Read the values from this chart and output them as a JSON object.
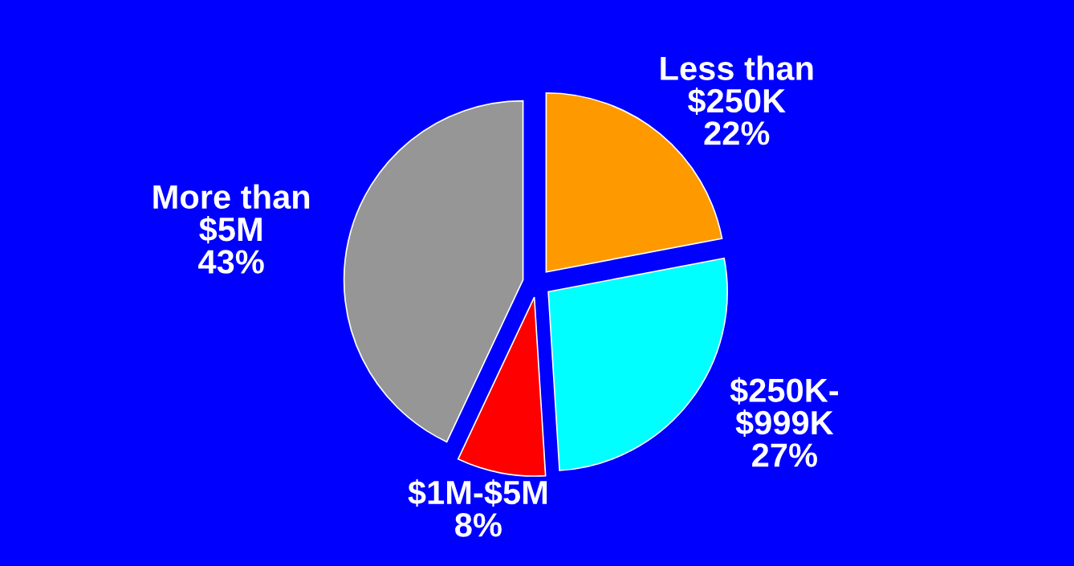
{
  "chart_data": {
    "type": "pie",
    "categories": [
      "Less than\n$250K",
      "$250K-\n$999K",
      "$1M-$5M",
      "More than\n$5M"
    ],
    "values": [
      22,
      27,
      8,
      43
    ],
    "value_labels": [
      "22%",
      "27%",
      "8%",
      "43%"
    ],
    "colors": [
      "#ff9900",
      "#00ffff",
      "#ff0000",
      "#969696"
    ]
  }
}
